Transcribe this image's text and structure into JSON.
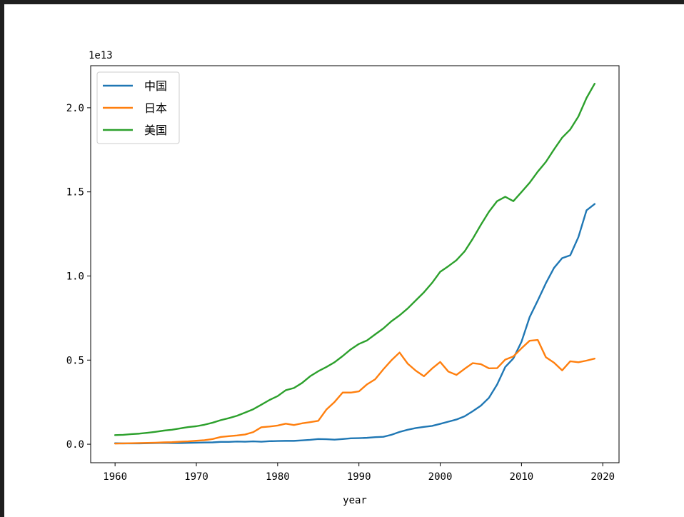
{
  "chart_data": {
    "type": "line",
    "title": "",
    "xlabel": "year",
    "ylabel": "",
    "offset_text": "1e13",
    "xlim": [
      1957,
      2022
    ],
    "ylim": [
      -0.11,
      2.25
    ],
    "xticks": [
      1960,
      1970,
      1980,
      1990,
      2000,
      2010,
      2020
    ],
    "xtick_labels": [
      "1960",
      "1970",
      "1980",
      "1990",
      "2000",
      "2010",
      "2020"
    ],
    "yticks": [
      0.0,
      0.5,
      1.0,
      1.5,
      2.0
    ],
    "ytick_labels": [
      "0.0",
      "0.5",
      "1.0",
      "1.5",
      "2.0"
    ],
    "grid": false,
    "legend": {
      "position": "top-left"
    },
    "x": [
      1960,
      1961,
      1962,
      1963,
      1964,
      1965,
      1966,
      1967,
      1968,
      1969,
      1970,
      1971,
      1972,
      1973,
      1974,
      1975,
      1976,
      1977,
      1978,
      1979,
      1980,
      1981,
      1982,
      1983,
      1984,
      1985,
      1986,
      1987,
      1988,
      1989,
      1990,
      1991,
      1992,
      1993,
      1994,
      1995,
      1996,
      1997,
      1998,
      1999,
      2000,
      2001,
      2002,
      2003,
      2004,
      2005,
      2006,
      2007,
      2008,
      2009,
      2010,
      2011,
      2012,
      2013,
      2014,
      2015,
      2016,
      2017,
      2018,
      2019
    ],
    "series": [
      {
        "name": "中国",
        "color": "#1f77b4",
        "values": [
          0.006,
          0.005,
          0.005,
          0.005,
          0.006,
          0.007,
          0.008,
          0.007,
          0.007,
          0.008,
          0.009,
          0.01,
          0.011,
          0.014,
          0.014,
          0.016,
          0.015,
          0.017,
          0.015,
          0.018,
          0.019,
          0.02,
          0.02,
          0.023,
          0.026,
          0.031,
          0.03,
          0.027,
          0.031,
          0.035,
          0.036,
          0.038,
          0.042,
          0.044,
          0.056,
          0.073,
          0.086,
          0.096,
          0.103,
          0.109,
          0.121,
          0.134,
          0.147,
          0.166,
          0.196,
          0.229,
          0.276,
          0.355,
          0.459,
          0.51,
          0.609,
          0.755,
          0.854,
          0.957,
          1.048,
          1.106,
          1.123,
          1.231,
          1.39,
          1.428
        ]
      },
      {
        "name": "日本",
        "color": "#ff7f0e",
        "values": [
          0.004,
          0.005,
          0.006,
          0.007,
          0.008,
          0.009,
          0.011,
          0.012,
          0.015,
          0.017,
          0.021,
          0.024,
          0.031,
          0.043,
          0.048,
          0.052,
          0.058,
          0.072,
          0.101,
          0.105,
          0.111,
          0.122,
          0.114,
          0.124,
          0.131,
          0.139,
          0.206,
          0.251,
          0.307,
          0.307,
          0.314,
          0.356,
          0.386,
          0.445,
          0.499,
          0.545,
          0.479,
          0.437,
          0.404,
          0.45,
          0.489,
          0.432,
          0.412,
          0.448,
          0.482,
          0.476,
          0.451,
          0.452,
          0.503,
          0.522,
          0.57,
          0.615,
          0.62,
          0.517,
          0.485,
          0.439,
          0.493,
          0.487,
          0.497,
          0.509
        ]
      },
      {
        "name": "美国",
        "color": "#2ca02c",
        "values": [
          0.054,
          0.056,
          0.06,
          0.063,
          0.068,
          0.074,
          0.081,
          0.086,
          0.094,
          0.102,
          0.107,
          0.116,
          0.128,
          0.143,
          0.155,
          0.169,
          0.188,
          0.208,
          0.235,
          0.263,
          0.286,
          0.321,
          0.334,
          0.364,
          0.404,
          0.434,
          0.459,
          0.487,
          0.524,
          0.564,
          0.596,
          0.617,
          0.653,
          0.688,
          0.731,
          0.766,
          0.807,
          0.855,
          0.903,
          0.959,
          1.025,
          1.058,
          1.094,
          1.146,
          1.221,
          1.304,
          1.382,
          1.445,
          1.471,
          1.445,
          1.499,
          1.554,
          1.62,
          1.678,
          1.752,
          1.822,
          1.871,
          1.948,
          2.058,
          2.143
        ]
      }
    ]
  }
}
